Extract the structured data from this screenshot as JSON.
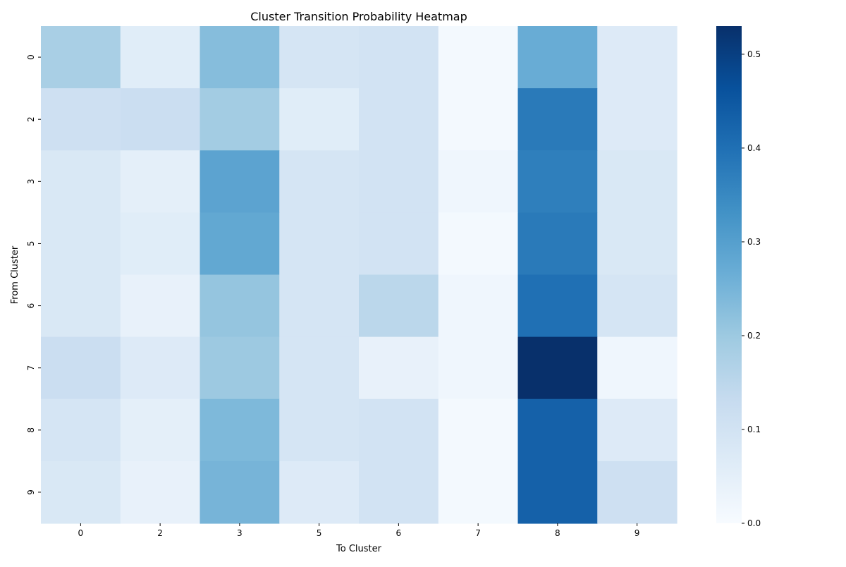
{
  "chart_data": {
    "type": "heatmap",
    "title": "Cluster Transition Probability Heatmap",
    "xlabel": "To Cluster",
    "ylabel": "From Cluster",
    "x_categories": [
      "0",
      "2",
      "3",
      "5",
      "6",
      "7",
      "8",
      "9"
    ],
    "y_categories": [
      "0",
      "2",
      "3",
      "5",
      "6",
      "7",
      "8",
      "9"
    ],
    "values": [
      [
        0.18,
        0.06,
        0.23,
        0.09,
        0.1,
        0.01,
        0.27,
        0.07
      ],
      [
        0.11,
        0.12,
        0.19,
        0.06,
        0.1,
        0.01,
        0.38,
        0.07
      ],
      [
        0.08,
        0.05,
        0.29,
        0.09,
        0.1,
        0.02,
        0.37,
        0.08
      ],
      [
        0.08,
        0.06,
        0.28,
        0.09,
        0.1,
        0.01,
        0.38,
        0.08
      ],
      [
        0.08,
        0.04,
        0.21,
        0.09,
        0.15,
        0.02,
        0.4,
        0.09
      ],
      [
        0.12,
        0.07,
        0.2,
        0.09,
        0.04,
        0.02,
        0.53,
        0.02
      ],
      [
        0.09,
        0.05,
        0.24,
        0.09,
        0.1,
        0.01,
        0.43,
        0.07
      ],
      [
        0.08,
        0.04,
        0.25,
        0.07,
        0.1,
        0.01,
        0.43,
        0.11
      ]
    ],
    "vmin": 0.0,
    "vmax": 0.53,
    "colormap": "Blues",
    "colorbar_ticks": [
      0.0,
      0.1,
      0.2,
      0.3,
      0.4,
      0.5
    ],
    "colorbar_tick_labels": [
      "0.0",
      "0.1",
      "0.2",
      "0.3",
      "0.4",
      "0.5"
    ],
    "grid": false,
    "legend": "colorbar-right"
  }
}
